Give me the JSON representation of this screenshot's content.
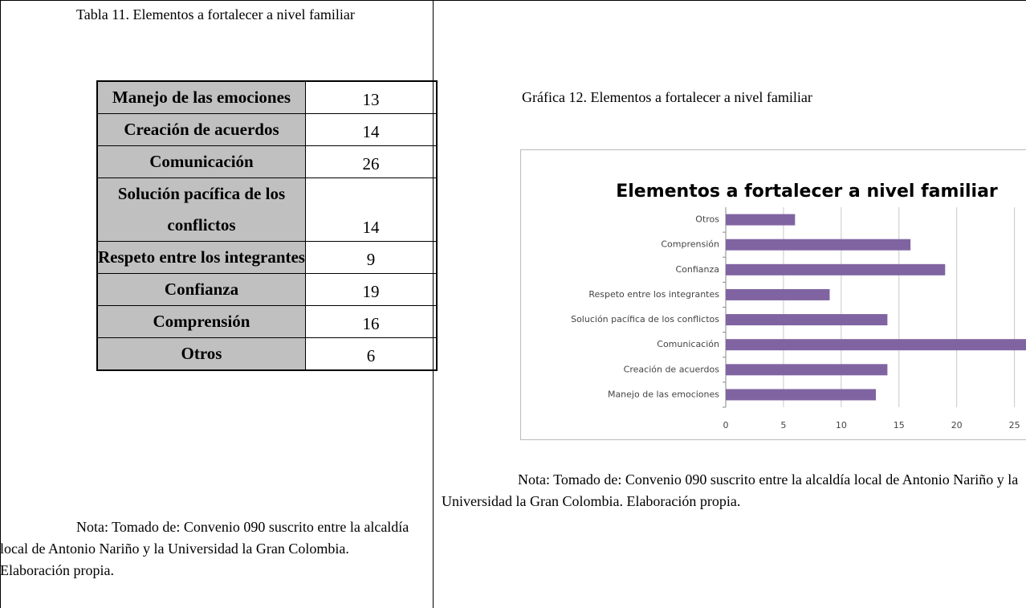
{
  "left": {
    "caption": "Tabla 11. Elementos a fortalecer a nivel familiar",
    "table": {
      "rows": [
        [
          "Manejo de las emociones",
          13
        ],
        [
          "Creación de acuerdos",
          14
        ],
        [
          "Comunicación",
          26
        ],
        [
          "Solución pacífica de los conflictos",
          14
        ],
        [
          "Respeto entre los integrantes",
          9
        ],
        [
          "Confianza",
          19
        ],
        [
          "Comprensión",
          16
        ],
        [
          "Otros",
          6
        ]
      ]
    },
    "note": "Nota: Tomado de: Convenio 090 suscrito entre la alcaldía local de Antonio Nariño y la Universidad la Gran Colombia. Elaboración propia."
  },
  "right": {
    "caption": "Gráfica 12. Elementos a fortalecer a nivel familiar",
    "note": "Nota: Tomado de: Convenio 090 suscrito entre la alcaldía local de Antonio Nariño y la Universidad la Gran Colombia. Elaboración propia."
  },
  "chart_data": {
    "type": "barh",
    "title": "Elementos a fortalecer a nivel familiar",
    "categories": [
      "Manejo de las emociones",
      "Creación de acuerdos",
      "Comunicación",
      "Solución pacífica de los conflictos",
      "Respeto entre los integrantes",
      "Confianza",
      "Comprensión",
      "Otros"
    ],
    "values": [
      13,
      14,
      26,
      14,
      9,
      19,
      16,
      6
    ],
    "color": "#8064a2",
    "xlim": [
      0,
      26
    ],
    "xticks": [
      0,
      5,
      10,
      15,
      20,
      25
    ],
    "grid": true
  }
}
